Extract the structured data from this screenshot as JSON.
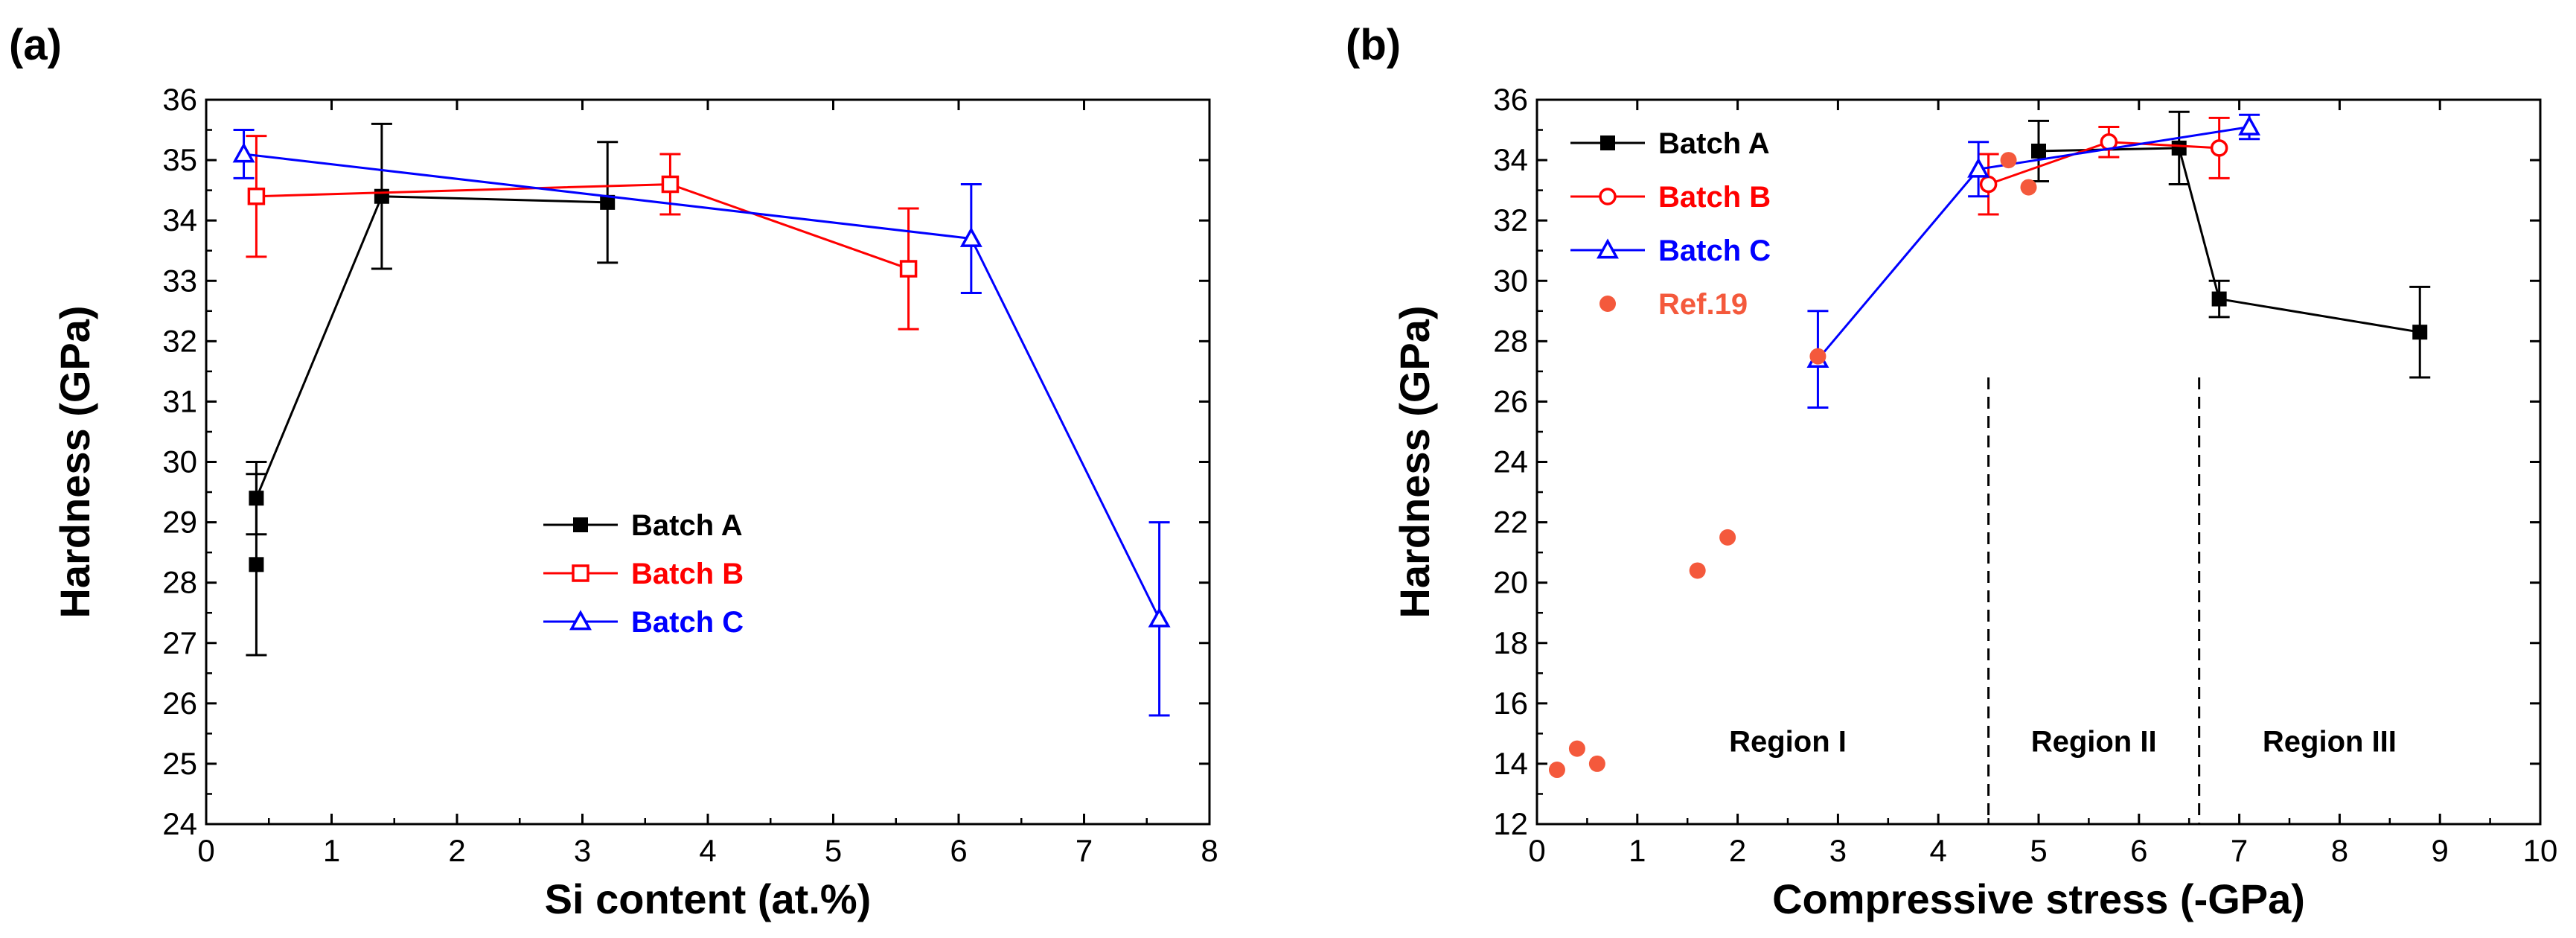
{
  "panel_labels": [
    "(a)",
    "(b)"
  ],
  "chart_data": [
    {
      "type": "line",
      "title": "",
      "xlabel": "Si content (at.%)",
      "ylabel": "Hardness (GPa)",
      "xlim": [
        0,
        8
      ],
      "ylim": [
        24,
        36
      ],
      "xticks": [
        "0",
        "1",
        "2",
        "3",
        "4",
        "5",
        "6",
        "7",
        "8"
      ],
      "yticks": [
        "24",
        "25",
        "26",
        "27",
        "28",
        "29",
        "30",
        "31",
        "32",
        "33",
        "34",
        "35",
        "36"
      ],
      "legend_position": "center-right",
      "series": [
        {
          "name": "Batch A",
          "color": "#000000",
          "marker": "square-filled",
          "x": [
            0.4,
            0.4,
            1.4,
            3.2
          ],
          "y": [
            28.3,
            29.4,
            34.4,
            34.3
          ],
          "err": [
            1.5,
            0.6,
            1.2,
            1.0
          ]
        },
        {
          "name": "Batch B",
          "color": "#ff0000",
          "marker": "square-open",
          "x": [
            0.4,
            3.7,
            5.6
          ],
          "y": [
            34.4,
            34.6,
            33.2
          ],
          "err": [
            1.0,
            0.5,
            1.0
          ]
        },
        {
          "name": "Batch C",
          "color": "#0000ff",
          "marker": "triangle-open",
          "x": [
            0.3,
            6.1,
            7.6
          ],
          "y": [
            35.1,
            33.7,
            27.4
          ],
          "err": [
            0.4,
            0.9,
            1.6
          ]
        }
      ]
    },
    {
      "type": "line",
      "title": "",
      "xlabel": "Compressive stress (-GPa)",
      "ylabel": "Hardness (GPa)",
      "xlim": [
        0,
        10
      ],
      "ylim": [
        12,
        36
      ],
      "xticks": [
        "0",
        "1",
        "2",
        "3",
        "4",
        "5",
        "6",
        "7",
        "8",
        "9",
        "10"
      ],
      "yticks": [
        "12",
        "14",
        "16",
        "18",
        "20",
        "22",
        "24",
        "26",
        "28",
        "30",
        "32",
        "34",
        "36"
      ],
      "legend_position": "top-left",
      "series": [
        {
          "name": "Batch A",
          "color": "#000000",
          "marker": "square-filled",
          "x": [
            5.0,
            6.4,
            6.8,
            8.8
          ],
          "y": [
            34.3,
            34.4,
            29.4,
            28.3
          ],
          "err": [
            1.0,
            1.2,
            0.6,
            1.5
          ]
        },
        {
          "name": "Batch B",
          "color": "#ff0000",
          "marker": "circle-open",
          "x": [
            4.5,
            5.7,
            6.8
          ],
          "y": [
            33.2,
            34.6,
            34.4
          ],
          "err": [
            1.0,
            0.5,
            1.0
          ]
        },
        {
          "name": "Batch C",
          "color": "#0000ff",
          "marker": "triangle-open",
          "x": [
            2.8,
            4.4,
            7.1
          ],
          "y": [
            27.4,
            33.7,
            35.1
          ],
          "err": [
            1.6,
            0.9,
            0.4
          ]
        },
        {
          "name": "Ref.19",
          "color": "#f4593c",
          "marker": "circle-filled",
          "x": [
            0.2,
            0.4,
            0.6,
            1.6,
            1.9,
            2.8,
            4.7,
            4.9
          ],
          "y": [
            13.8,
            14.5,
            14.0,
            20.4,
            21.5,
            27.5,
            34.0,
            33.1
          ],
          "err": null
        }
      ],
      "dividers_x": [
        4.5,
        6.6
      ],
      "divider_y_top": 26.8,
      "regions": [
        {
          "label": "Region I",
          "x": 2.5,
          "y": 14.4
        },
        {
          "label": "Region II",
          "x": 5.55,
          "y": 14.4
        },
        {
          "label": "Region III",
          "x": 7.9,
          "y": 14.4
        }
      ]
    }
  ]
}
